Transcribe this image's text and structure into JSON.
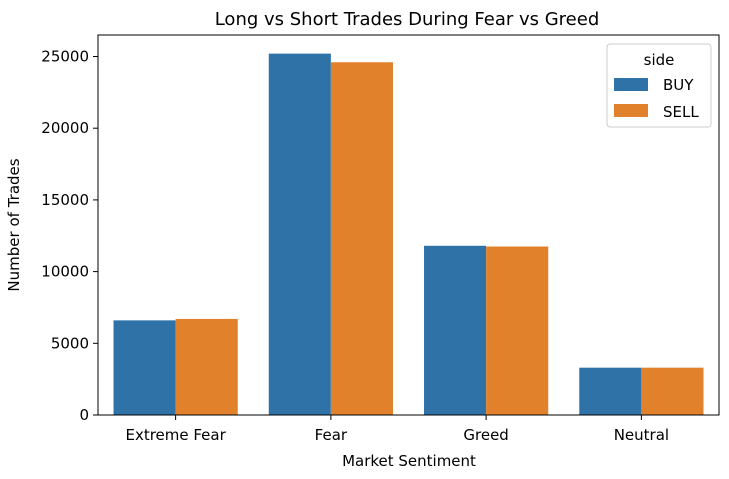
{
  "chart_data": {
    "type": "bar",
    "title": "Long vs Short Trades During Fear vs Greed",
    "xlabel": "Market Sentiment",
    "ylabel": "Number of Trades",
    "categories": [
      "Extreme Fear",
      "Fear",
      "Greed",
      "Neutral"
    ],
    "series": [
      {
        "name": "BUY",
        "values": [
          6600,
          25200,
          11800,
          3300
        ]
      },
      {
        "name": "SELL",
        "values": [
          6700,
          24600,
          11750,
          3300
        ]
      }
    ],
    "ylim": [
      0,
      26500
    ],
    "yticks": [
      0,
      5000,
      10000,
      15000,
      20000,
      25000
    ],
    "ytick_labels": [
      "0",
      "5000",
      "10000",
      "15000",
      "20000",
      "25000"
    ],
    "grid": false,
    "legend": {
      "title": "side",
      "placement": "top-right"
    },
    "colors": {
      "BUY": "#2f72a8",
      "SELL": "#e1812c"
    }
  }
}
